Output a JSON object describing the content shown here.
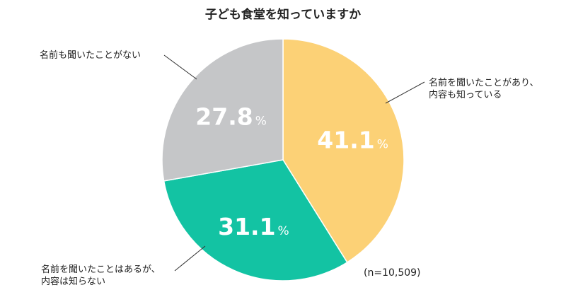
{
  "chart_data": {
    "type": "pie",
    "title": "子ども食堂を知っていますか",
    "note": "(n=10,509)",
    "unit": "%",
    "slices": [
      {
        "label_lines": [
          "名前を聞いたことがあり、",
          "内容も知っている"
        ],
        "value": 41.1,
        "display": "41.1",
        "color": "#FCD176"
      },
      {
        "label_lines": [
          "名前を聞いたことはあるが、",
          "内容は知らない"
        ],
        "value": 31.1,
        "display": "31.1",
        "color": "#13C3A3"
      },
      {
        "label_lines": [
          "名前も聞いたことがない"
        ],
        "value": 27.8,
        "display": "27.8",
        "color": "#C5C6C8"
      }
    ]
  }
}
